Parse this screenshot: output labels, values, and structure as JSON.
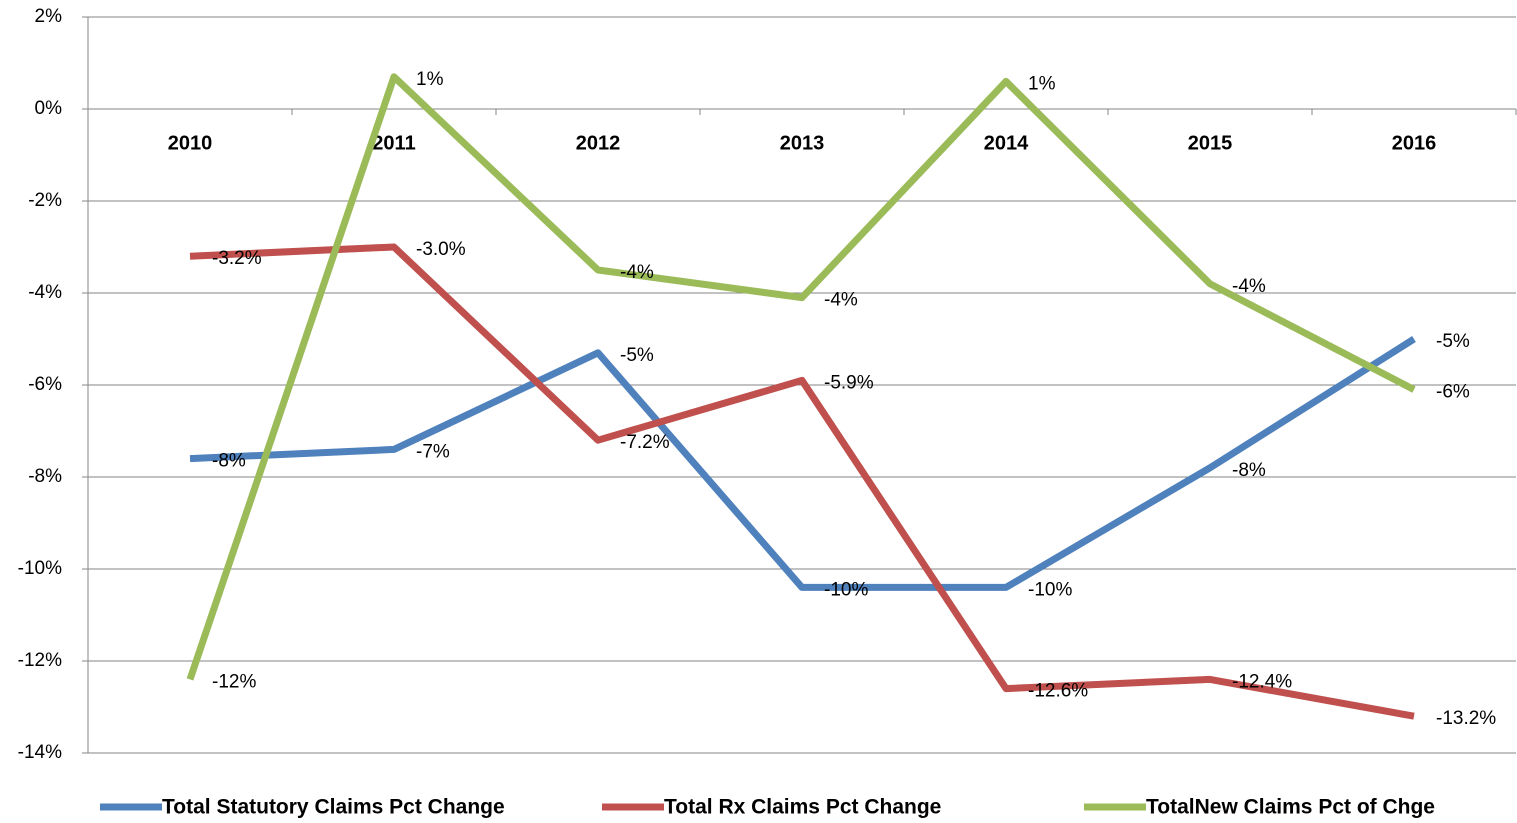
{
  "chart_data": {
    "type": "line",
    "categories": [
      "2010",
      "2011",
      "2012",
      "2013",
      "2014",
      "2015",
      "2016"
    ],
    "series": [
      {
        "name": "Total Statutory Claims  Pct Change",
        "color": "#4f81bd",
        "values": [
          -7.6,
          -7.4,
          -5.3,
          -10.4,
          -10.4,
          -7.8,
          -5.0
        ],
        "value_labels": [
          "-8%",
          "-7%",
          "-5%",
          "-10%",
          "-10%",
          "-8%",
          "-5%"
        ]
      },
      {
        "name": "Total Rx Claims Pct Change",
        "color": "#c0504d",
        "values": [
          -3.2,
          -3.0,
          -7.2,
          -5.9,
          -12.6,
          -12.4,
          -13.2
        ],
        "value_labels": [
          "-3.2%",
          "-3.0%",
          "-7.2%",
          "-5.9%",
          "-12.6%",
          "-12.4%",
          "-13.2%"
        ]
      },
      {
        "name": "TotalNew Claims Pct of Chge",
        "color": "#9bbb59",
        "values": [
          -12.4,
          0.7,
          -3.5,
          -4.1,
          0.6,
          -3.8,
          -6.1
        ],
        "value_labels": [
          "-12%",
          "1%",
          "-4%",
          "-4%",
          "1%",
          "-4%",
          "-6%"
        ]
      }
    ],
    "ylim": [
      -14,
      2
    ],
    "yticks": [
      {
        "value": -14,
        "label": "-14%"
      },
      {
        "value": -12,
        "label": "-12%"
      },
      {
        "value": -10,
        "label": "-10%"
      },
      {
        "value": -8,
        "label": "-8%"
      },
      {
        "value": -6,
        "label": "-6%"
      },
      {
        "value": -4,
        "label": "-4%"
      },
      {
        "value": -2,
        "label": "-2%"
      },
      {
        "value": 0,
        "label": "0%"
      },
      {
        "value": 2,
        "label": "2%"
      }
    ],
    "grid": true
  }
}
